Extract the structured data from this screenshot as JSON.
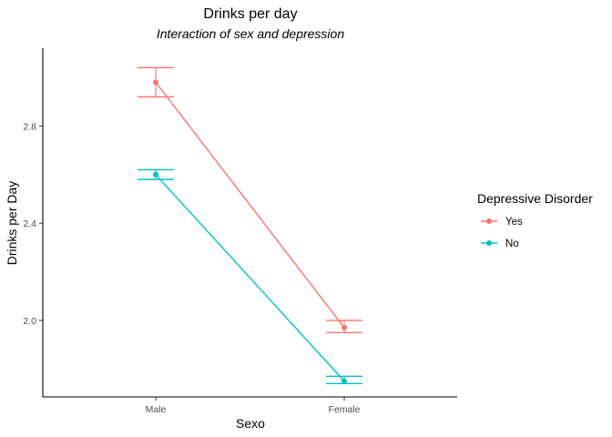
{
  "chart_data": {
    "type": "line",
    "title": "Drinks per day",
    "subtitle": "Interaction of sex and depression",
    "xlabel": "Sexo",
    "ylabel": "Drinks per Day",
    "categories": [
      "Male",
      "Female"
    ],
    "ylim": [
      1.685,
      3.12
    ],
    "yticks": [
      2.0,
      2.4,
      2.8
    ],
    "ytick_labels": [
      "2.0",
      "2.4",
      "2.8"
    ],
    "grid": false,
    "legend": {
      "title": "Depressive Disorder",
      "position": "right"
    },
    "series": [
      {
        "name": "Yes",
        "color": "#F8766D",
        "values": [
          2.98,
          1.97
        ],
        "error_low": [
          2.92,
          1.95
        ],
        "error_high": [
          3.04,
          2.0
        ]
      },
      {
        "name": "No",
        "color": "#00BFC4",
        "values": [
          2.6,
          1.75
        ],
        "error_low": [
          2.58,
          1.74
        ],
        "error_high": [
          2.62,
          1.77
        ]
      }
    ]
  }
}
